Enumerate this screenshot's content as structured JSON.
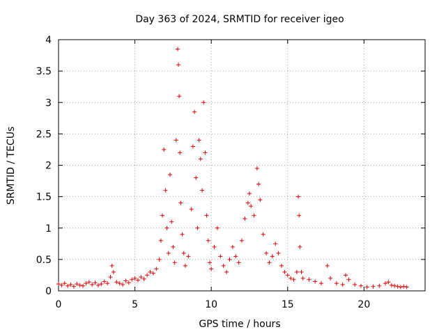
{
  "chart_data": {
    "type": "scatter",
    "title": "Day 363 of 2024, SRMTID for receiver igeo",
    "xlabel": "GPS time / hours",
    "ylabel": "SRMTID / TECUs",
    "xlim": [
      0,
      24
    ],
    "ylim": [
      0,
      4
    ],
    "xticks": [
      0,
      5,
      10,
      15,
      20
    ],
    "xtick_labels": [
      "0",
      "5",
      "10",
      "15",
      "20"
    ],
    "yticks": [
      0,
      0.5,
      1,
      1.5,
      2,
      2.5,
      3,
      3.5,
      4
    ],
    "ytick_labels": [
      "0",
      "0.5",
      "1",
      "1.5",
      "2",
      "2.5",
      "3",
      "3.5",
      "4"
    ],
    "grid": true,
    "marker": "+",
    "color": "#e00000",
    "series": [
      {
        "name": "SRMTID",
        "points": [
          [
            0.0,
            0.11
          ],
          [
            0.2,
            0.09
          ],
          [
            0.4,
            0.12
          ],
          [
            0.6,
            0.08
          ],
          [
            0.8,
            0.1
          ],
          [
            1.0,
            0.07
          ],
          [
            1.2,
            0.11
          ],
          [
            1.4,
            0.09
          ],
          [
            1.6,
            0.08
          ],
          [
            1.8,
            0.12
          ],
          [
            2.0,
            0.14
          ],
          [
            2.2,
            0.1
          ],
          [
            2.4,
            0.13
          ],
          [
            2.6,
            0.09
          ],
          [
            2.8,
            0.11
          ],
          [
            3.0,
            0.15
          ],
          [
            3.2,
            0.12
          ],
          [
            3.4,
            0.22
          ],
          [
            3.5,
            0.4
          ],
          [
            3.6,
            0.3
          ],
          [
            3.8,
            0.14
          ],
          [
            4.0,
            0.12
          ],
          [
            4.2,
            0.1
          ],
          [
            4.4,
            0.16
          ],
          [
            4.6,
            0.13
          ],
          [
            4.8,
            0.18
          ],
          [
            5.0,
            0.2
          ],
          [
            5.2,
            0.17
          ],
          [
            5.4,
            0.22
          ],
          [
            5.6,
            0.19
          ],
          [
            5.8,
            0.25
          ],
          [
            6.0,
            0.3
          ],
          [
            6.2,
            0.28
          ],
          [
            6.4,
            0.35
          ],
          [
            6.6,
            0.5
          ],
          [
            6.7,
            0.8
          ],
          [
            6.8,
            1.2
          ],
          [
            6.9,
            2.25
          ],
          [
            7.0,
            1.6
          ],
          [
            7.1,
            1.0
          ],
          [
            7.2,
            0.6
          ],
          [
            7.3,
            1.85
          ],
          [
            7.4,
            1.1
          ],
          [
            7.5,
            0.7
          ],
          [
            7.6,
            0.45
          ],
          [
            7.7,
            2.4
          ],
          [
            7.8,
            3.85
          ],
          [
            7.85,
            3.6
          ],
          [
            7.9,
            3.1
          ],
          [
            7.95,
            2.2
          ],
          [
            8.0,
            1.4
          ],
          [
            8.1,
            0.9
          ],
          [
            8.2,
            0.6
          ],
          [
            8.3,
            0.4
          ],
          [
            8.5,
            0.55
          ],
          [
            8.7,
            1.3
          ],
          [
            8.8,
            2.3
          ],
          [
            8.9,
            2.85
          ],
          [
            9.0,
            1.8
          ],
          [
            9.1,
            1.0
          ],
          [
            9.2,
            2.4
          ],
          [
            9.3,
            2.1
          ],
          [
            9.4,
            1.6
          ],
          [
            9.5,
            3.0
          ],
          [
            9.6,
            2.2
          ],
          [
            9.7,
            1.2
          ],
          [
            9.8,
            0.8
          ],
          [
            9.9,
            0.45
          ],
          [
            10.0,
            0.35
          ],
          [
            10.2,
            0.7
          ],
          [
            10.4,
            1.0
          ],
          [
            10.6,
            0.55
          ],
          [
            10.8,
            0.4
          ],
          [
            11.0,
            0.3
          ],
          [
            11.2,
            0.5
          ],
          [
            11.4,
            0.7
          ],
          [
            11.6,
            0.55
          ],
          [
            11.8,
            0.45
          ],
          [
            12.0,
            0.8
          ],
          [
            12.2,
            1.15
          ],
          [
            12.4,
            1.4
          ],
          [
            12.5,
            1.55
          ],
          [
            12.6,
            1.35
          ],
          [
            12.8,
            1.2
          ],
          [
            13.0,
            1.95
          ],
          [
            13.1,
            1.7
          ],
          [
            13.2,
            1.45
          ],
          [
            13.4,
            0.9
          ],
          [
            13.6,
            0.6
          ],
          [
            13.8,
            0.45
          ],
          [
            14.0,
            0.55
          ],
          [
            14.2,
            0.75
          ],
          [
            14.4,
            0.6
          ],
          [
            14.6,
            0.4
          ],
          [
            14.8,
            0.3
          ],
          [
            15.0,
            0.25
          ],
          [
            15.2,
            0.2
          ],
          [
            15.4,
            0.18
          ],
          [
            15.6,
            0.3
          ],
          [
            15.7,
            1.5
          ],
          [
            15.75,
            1.2
          ],
          [
            15.8,
            0.7
          ],
          [
            15.9,
            0.3
          ],
          [
            16.0,
            0.2
          ],
          [
            16.4,
            0.18
          ],
          [
            16.8,
            0.15
          ],
          [
            17.2,
            0.12
          ],
          [
            17.6,
            0.4
          ],
          [
            17.8,
            0.2
          ],
          [
            18.2,
            0.12
          ],
          [
            18.6,
            0.1
          ],
          [
            18.8,
            0.25
          ],
          [
            19.0,
            0.18
          ],
          [
            19.4,
            0.1
          ],
          [
            19.8,
            0.08
          ],
          [
            20.2,
            0.06
          ],
          [
            20.6,
            0.07
          ],
          [
            21.0,
            0.08
          ],
          [
            21.4,
            0.12
          ],
          [
            21.6,
            0.14
          ],
          [
            21.8,
            0.09
          ],
          [
            22.0,
            0.08
          ],
          [
            22.2,
            0.07
          ],
          [
            22.4,
            0.06
          ],
          [
            22.6,
            0.07
          ],
          [
            22.8,
            0.06
          ]
        ]
      }
    ]
  }
}
